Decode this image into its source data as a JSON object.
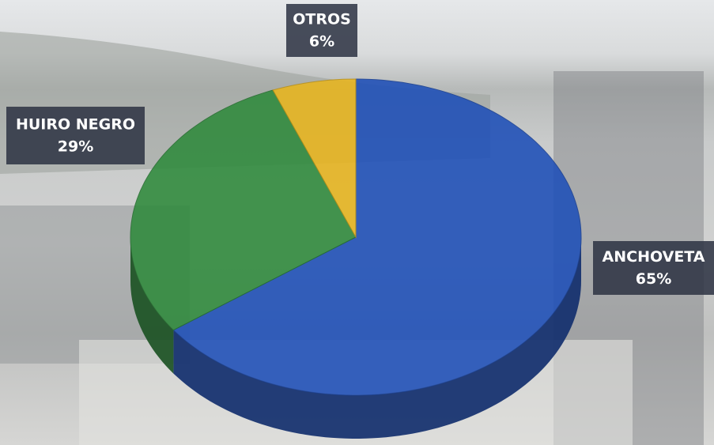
{
  "chart_data": {
    "type": "pie",
    "categories": [
      "ANCHOVETA",
      "HUIRO NEGRO",
      "OTROS"
    ],
    "values": [
      65,
      29,
      6
    ],
    "value_labels": [
      "65%",
      "29%",
      "6%"
    ],
    "colors": [
      "#1e4fb8",
      "#2f8a3c",
      "#e8b51e"
    ]
  }
}
